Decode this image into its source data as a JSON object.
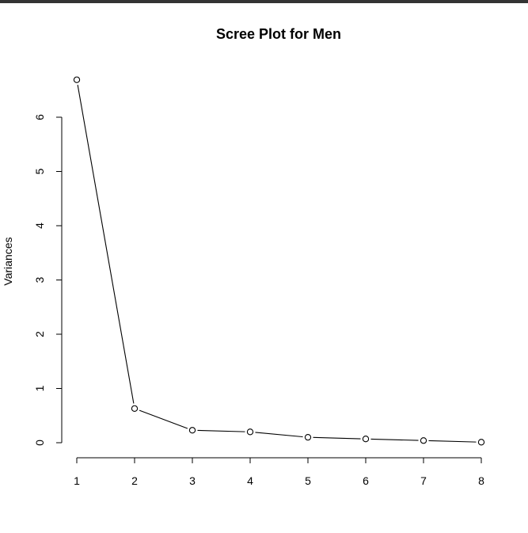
{
  "chart_data": {
    "type": "line",
    "title": "Scree Plot for Men",
    "xlabel": "",
    "ylabel": "Variances",
    "x": [
      1,
      2,
      3,
      4,
      5,
      6,
      7,
      8
    ],
    "series": [
      {
        "values": [
          6.69,
          0.63,
          0.23,
          0.2,
          0.1,
          0.07,
          0.04,
          0.01
        ]
      }
    ],
    "xticks": [
      "1",
      "2",
      "3",
      "4",
      "5",
      "6",
      "7",
      "8"
    ],
    "yticks": [
      "0",
      "1",
      "2",
      "3",
      "4",
      "5",
      "6"
    ],
    "xlim": [
      1,
      8
    ],
    "ylim": [
      0,
      6
    ],
    "grid": false,
    "line_color": "#000000",
    "marker": "open-circle"
  }
}
